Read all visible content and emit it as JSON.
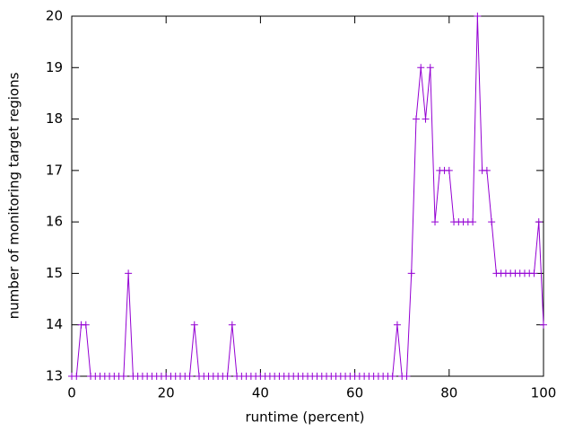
{
  "chart_data": {
    "type": "line",
    "xlabel": "runtime (percent)",
    "ylabel": "number of monitoring target regions",
    "x": [
      0,
      1,
      2,
      3,
      4,
      5,
      6,
      7,
      8,
      9,
      10,
      11,
      12,
      13,
      14,
      15,
      16,
      17,
      18,
      19,
      20,
      21,
      22,
      23,
      24,
      25,
      26,
      27,
      28,
      29,
      30,
      31,
      32,
      33,
      34,
      35,
      36,
      37,
      38,
      39,
      40,
      41,
      42,
      43,
      44,
      45,
      46,
      47,
      48,
      49,
      50,
      51,
      52,
      53,
      54,
      55,
      56,
      57,
      58,
      59,
      60,
      61,
      62,
      63,
      64,
      65,
      66,
      67,
      68,
      69,
      70,
      71,
      72,
      73,
      74,
      75,
      76,
      77,
      78,
      79,
      80,
      81,
      82,
      83,
      84,
      85,
      86,
      87,
      88,
      89,
      90,
      91,
      92,
      93,
      94,
      95,
      96,
      97,
      98,
      99,
      100
    ],
    "series": [
      {
        "color": "#9400d3",
        "values": [
          13,
          13,
          14,
          14,
          13,
          13,
          13,
          13,
          13,
          13,
          13,
          13,
          15,
          13,
          13,
          13,
          13,
          13,
          13,
          13,
          13,
          13,
          13,
          13,
          13,
          13,
          14,
          13,
          13,
          13,
          13,
          13,
          13,
          13,
          14,
          13,
          13,
          13,
          13,
          13,
          13,
          13,
          13,
          13,
          13,
          13,
          13,
          13,
          13,
          13,
          13,
          13,
          13,
          13,
          13,
          13,
          13,
          13,
          13,
          13,
          13,
          13,
          13,
          13,
          13,
          13,
          13,
          13,
          13,
          14,
          13,
          13,
          15,
          18,
          19,
          18,
          19,
          16,
          17,
          17,
          17,
          16,
          16,
          16,
          16,
          16,
          20,
          17,
          17,
          16,
          15,
          15,
          15,
          15,
          15,
          15,
          15,
          15,
          15,
          16,
          14
        ]
      }
    ],
    "xlim": [
      0,
      100
    ],
    "xticks": [
      0,
      20,
      40,
      60,
      80,
      100
    ],
    "ylim": [
      13,
      20
    ],
    "yticks": [
      13,
      14,
      15,
      16,
      17,
      18,
      19,
      20
    ],
    "grid": false
  }
}
